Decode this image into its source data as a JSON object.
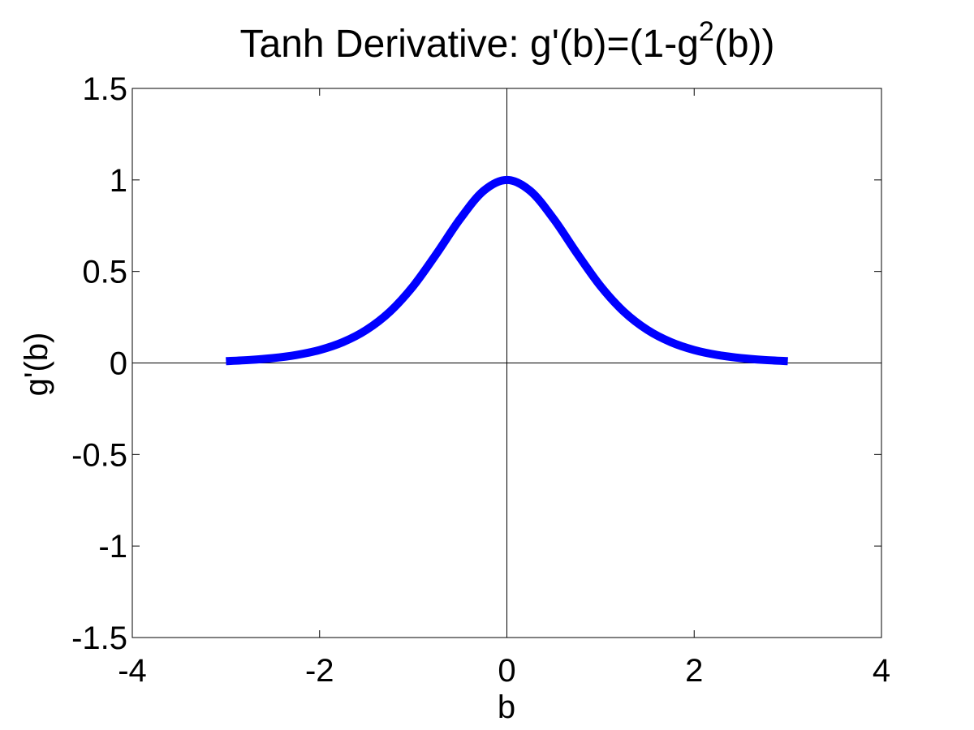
{
  "chart_data": {
    "type": "line",
    "title": "Tanh Derivative: g'(b)=(1-g",
    "title_superscript": "2",
    "title_suffix": "(b))",
    "xlabel": "b",
    "ylabel": "g'(b)",
    "xlim": [
      -4,
      4
    ],
    "ylim": [
      -1.5,
      1.5
    ],
    "xticks": [
      -4,
      -2,
      0,
      2,
      4
    ],
    "xtick_labels": [
      "-4",
      "-2",
      "0",
      "2",
      "4"
    ],
    "yticks": [
      -1.5,
      -1,
      -0.5,
      0,
      0.5,
      1,
      1.5
    ],
    "ytick_labels": [
      "-1.5",
      "-1",
      "-0.5",
      "0",
      "0.5",
      "1",
      "1.5"
    ],
    "grid": false,
    "zero_lines": true,
    "series": [
      {
        "color": "#0000ff",
        "x": [
          -3.0,
          -2.75,
          -2.5,
          -2.25,
          -2.0,
          -1.75,
          -1.5,
          -1.25,
          -1.0,
          -0.75,
          -0.5,
          -0.25,
          0.0,
          0.25,
          0.5,
          0.75,
          1.0,
          1.25,
          1.5,
          1.75,
          2.0,
          2.25,
          2.5,
          2.75,
          3.0
        ],
        "y": [
          0.0099,
          0.0163,
          0.0266,
          0.0435,
          0.0707,
          0.114,
          0.1807,
          0.2798,
          0.42,
          0.5978,
          0.7864,
          0.94,
          1.0,
          0.94,
          0.7864,
          0.5978,
          0.42,
          0.2798,
          0.1807,
          0.114,
          0.0707,
          0.0435,
          0.0266,
          0.0163,
          0.0099
        ]
      }
    ]
  }
}
